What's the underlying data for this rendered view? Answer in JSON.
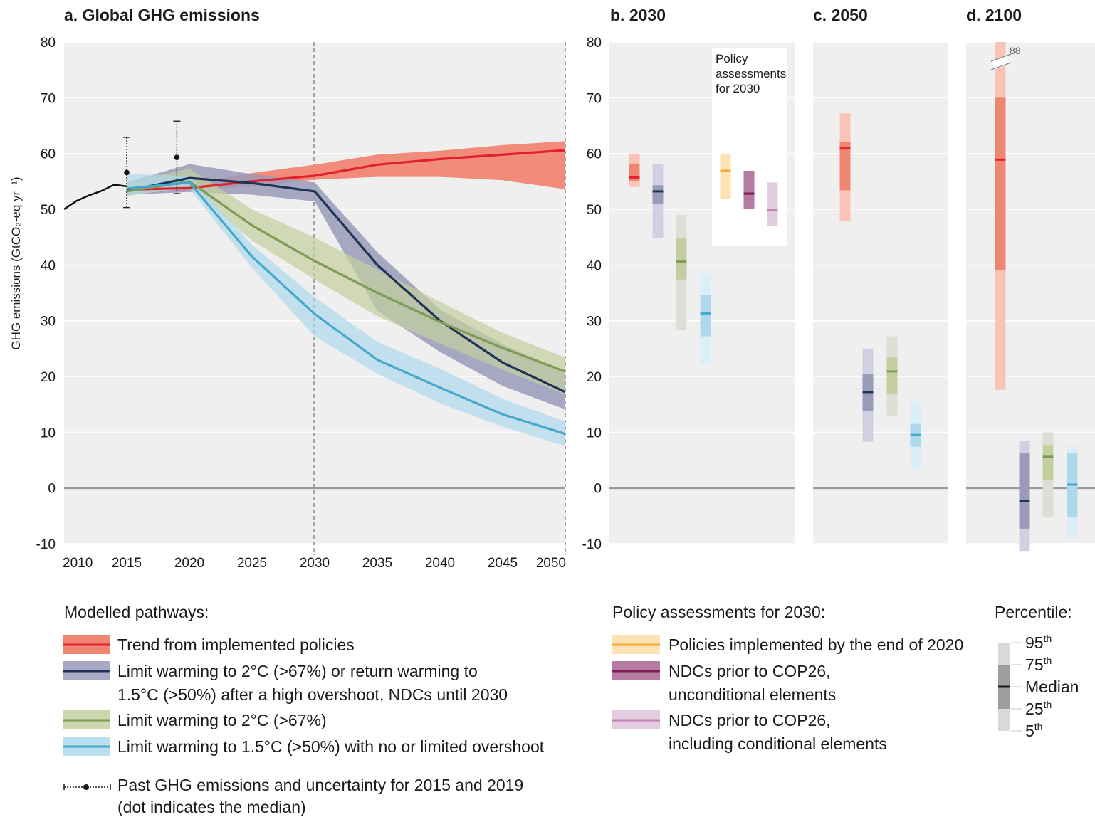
{
  "colors": {
    "red_line": "#e3202d",
    "red_band": "#ef8672",
    "red_light": "#f9c4b6",
    "navy_line": "#1d3454",
    "navy_band": "#9a9ab9",
    "navy_light": "#cfd0e1",
    "green_line": "#7d9b55",
    "green_band": "#c4cf9f",
    "green_light": "#dcdfd3",
    "blue_line": "#44a8cc",
    "blue_band": "#aed9ec",
    "blue_light": "#daeff8",
    "orange_line": "#f2a833",
    "orange_band": "#fde2b4",
    "purple_line": "#7c1c53",
    "purple_band": "#b57ba1",
    "pink_line": "#c57fb5",
    "pink_band": "#e4cce0",
    "panel_bg": "#efefef",
    "grid": "#ffffff",
    "zero": "#9a9a9a"
  },
  "panel_a": {
    "title": "a. Global GHG emissions",
    "ylabel": "GHG emissions (GtCO₂-eq yr⁻¹)",
    "x_ticks": [
      "2010",
      "2015",
      "2020",
      "2025",
      "2030",
      "2035",
      "2040",
      "2045",
      "2050"
    ],
    "y_ticks": [
      "80",
      "70",
      "60",
      "50",
      "40",
      "30",
      "20",
      "10",
      "0",
      "-10"
    ]
  },
  "panel_b": {
    "title": "b. 2030",
    "y_ticks": [
      "80",
      "70",
      "60",
      "50",
      "40",
      "30",
      "20",
      "10",
      "0",
      "-10"
    ],
    "policy_box": [
      "Policy",
      "assessments",
      "for 2030"
    ]
  },
  "panel_c": {
    "title": "c. 2050"
  },
  "panel_d": {
    "title": "d. 2100",
    "break_label": "88"
  },
  "chart_data": [
    {
      "type": "line",
      "panel": "a",
      "title": "a. Global GHG emissions",
      "ylabel": "GHG emissions (GtCO₂-eq yr⁻¹)",
      "xlim": [
        2010,
        2050
      ],
      "ylim": [
        -10,
        80
      ],
      "grid": true,
      "historical": {
        "x": [
          2010,
          2011,
          2012,
          2013,
          2014,
          2015
        ],
        "y": [
          50.0,
          51.5,
          52.5,
          53.3,
          54.4,
          54.1
        ]
      },
      "past_uncertainty": [
        {
          "x": 2015,
          "median": 56.6,
          "low": 50.3,
          "high": 62.9
        },
        {
          "x": 2019,
          "median": 59.3,
          "low": 52.8,
          "high": 65.8
        }
      ],
      "series": [
        {
          "name": "Trend from implemented policies",
          "key": "red",
          "x": [
            2015,
            2020,
            2025,
            2030,
            2035,
            2040,
            2045,
            2050
          ],
          "median": [
            53.5,
            53.8,
            55.0,
            56.0,
            58.0,
            59.0,
            59.8,
            60.6
          ],
          "low": [
            52.8,
            53.3,
            54.2,
            55.3,
            55.8,
            55.8,
            55.2,
            53.6
          ],
          "high": [
            54.3,
            54.5,
            56.5,
            58.0,
            59.8,
            60.5,
            61.5,
            62.2
          ]
        },
        {
          "name": "Limit warming to 2°C (>67%) or return warming to 1.5°C (>50%) after a high overshoot, NDCs until 2030",
          "key": "navy",
          "x": [
            2015,
            2020,
            2025,
            2030,
            2035,
            2040,
            2045,
            2050
          ],
          "median": [
            53.3,
            55.6,
            54.7,
            53.2,
            40.0,
            30.0,
            22.5,
            17.2
          ],
          "low": [
            52.6,
            53.1,
            52.6,
            51.4,
            31.8,
            24.4,
            18.3,
            14.1
          ],
          "high": [
            54.8,
            58.1,
            56.3,
            54.8,
            42.3,
            32.0,
            25.8,
            20.8
          ]
        },
        {
          "name": "Limit warming to 2°C (>67%)",
          "key": "green",
          "x": [
            2015,
            2020,
            2025,
            2030,
            2035,
            2040,
            2045,
            2050
          ],
          "median": [
            53.2,
            55.0,
            47.1,
            40.7,
            35.0,
            29.8,
            25.1,
            20.9
          ],
          "low": [
            52.4,
            53.9,
            44.4,
            37.4,
            30.8,
            25.9,
            21.2,
            16.8
          ],
          "high": [
            54.7,
            57.3,
            50.0,
            44.9,
            39.2,
            33.4,
            27.8,
            23.4
          ]
        },
        {
          "name": "Limit warming to 1.5°C (>50%) with no or limited overshoot",
          "key": "blue",
          "x": [
            2015,
            2020,
            2025,
            2030,
            2035,
            2040,
            2045,
            2050
          ],
          "median": [
            53.7,
            54.8,
            41.5,
            31.2,
            23.0,
            18.0,
            13.2,
            9.7
          ],
          "low": [
            52.6,
            53.7,
            39.5,
            27.2,
            20.5,
            15.2,
            11.0,
            7.5
          ],
          "high": [
            56.3,
            56.0,
            43.6,
            34.2,
            26.2,
            21.4,
            16.0,
            11.9
          ]
        }
      ]
    },
    {
      "type": "box",
      "panel": "b",
      "title": "b. 2030",
      "ylim": [
        -10,
        80
      ],
      "modelled": [
        {
          "key": "red",
          "p5": 54.0,
          "p25": 55.0,
          "median": 55.7,
          "p75": 58.2,
          "p95": 60.0
        },
        {
          "key": "navy",
          "p5": 44.8,
          "p25": 51.0,
          "median": 53.2,
          "p75": 54.3,
          "p95": 58.2
        },
        {
          "key": "green",
          "p5": 28.3,
          "p25": 37.4,
          "median": 40.6,
          "p75": 44.9,
          "p95": 49.0
        },
        {
          "key": "blue",
          "p5": 22.2,
          "p25": 27.2,
          "median": 31.3,
          "p75": 34.6,
          "p95": 38.4
        }
      ],
      "policy": [
        {
          "key": "orange",
          "low": 51.8,
          "median": 56.9,
          "high": 60.0
        },
        {
          "key": "purple",
          "low": 50.0,
          "median": 52.8,
          "high": 56.9
        },
        {
          "key": "pink",
          "low": 47.0,
          "median": 49.8,
          "high": 54.8
        }
      ]
    },
    {
      "type": "box",
      "panel": "c",
      "title": "c. 2050",
      "ylim": [
        -10,
        80
      ],
      "modelled": [
        {
          "key": "red",
          "p5": 47.9,
          "p25": 53.4,
          "median": 60.9,
          "p75": 62.1,
          "p95": 67.2
        },
        {
          "key": "navy",
          "p5": 8.3,
          "p25": 13.8,
          "median": 17.2,
          "p75": 20.5,
          "p95": 25.0
        },
        {
          "key": "green",
          "p5": 13.0,
          "p25": 16.8,
          "median": 20.9,
          "p75": 23.4,
          "p95": 27.2
        },
        {
          "key": "blue",
          "p5": 3.4,
          "p25": 7.4,
          "median": 9.5,
          "p75": 11.5,
          "p95": 15.5
        }
      ]
    },
    {
      "type": "box",
      "panel": "d",
      "title": "d. 2100",
      "ylim": [
        -10,
        80
      ],
      "modelled": [
        {
          "key": "red",
          "p5": 17.6,
          "p25": 39.1,
          "median": 58.9,
          "p75": 70.0,
          "p95": 88.0
        },
        {
          "key": "navy",
          "p5": -11.3,
          "p25": -7.3,
          "median": -2.4,
          "p75": 6.2,
          "p95": 8.5
        },
        {
          "key": "green",
          "p5": -5.3,
          "p25": 1.5,
          "median": 5.6,
          "p75": 7.7,
          "p95": 10.0
        },
        {
          "key": "blue",
          "p5": -9.0,
          "p25": -5.3,
          "median": 0.6,
          "p75": 6.2,
          "p95": 7.5
        }
      ]
    }
  ],
  "legend": {
    "modelled_title": "Modelled pathways:",
    "modelled": [
      {
        "key": "red",
        "lines": [
          "Trend from implemented policies"
        ]
      },
      {
        "key": "navy",
        "lines": [
          "Limit warming to 2°C (>67%) or return warming to",
          "1.5°C (>50%) after a high overshoot, NDCs until 2030"
        ]
      },
      {
        "key": "green",
        "lines": [
          "Limit warming to 2°C (>67%)"
        ]
      },
      {
        "key": "blue",
        "lines": [
          "Limit warming to 1.5°C (>50%) with no or limited overshoot"
        ]
      }
    ],
    "past_lines": [
      "Past GHG emissions and uncertainty for 2015 and 2019",
      "(dot indicates the median)"
    ],
    "policy_title": "Policy assessments for 2030:",
    "policy": [
      {
        "key": "orange",
        "lines": [
          "Policies implemented by the end of 2020"
        ]
      },
      {
        "key": "purple",
        "lines": [
          "NDCs prior to COP26,",
          "unconditional elements"
        ]
      },
      {
        "key": "pink",
        "lines": [
          "NDCs prior to COP26,",
          "including conditional elements"
        ]
      }
    ],
    "percentile_title": "Percentile:",
    "percentile_labels": [
      {
        "num": "95",
        "sup": "th"
      },
      {
        "num": "75",
        "sup": "th"
      },
      {
        "num": "Median",
        "sup": ""
      },
      {
        "num": "25",
        "sup": "th"
      },
      {
        "num": "5",
        "sup": "th"
      }
    ]
  }
}
